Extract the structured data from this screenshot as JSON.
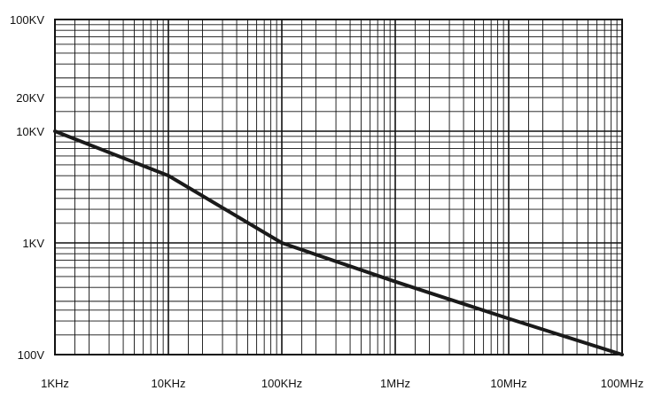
{
  "chart_data": {
    "type": "line",
    "title": "",
    "xlabel": "",
    "ylabel": "",
    "x_scale": "log",
    "y_scale": "log",
    "xlim": [
      1000,
      100000000
    ],
    "ylim": [
      100,
      100000
    ],
    "grid": true,
    "legend": "none",
    "colors": {
      "line": "#1a1a1a",
      "grid": "#111111",
      "text": "#111111",
      "background": "#ffffff"
    },
    "x_ticks": [
      {
        "value": 1000,
        "label": "1KHz"
      },
      {
        "value": 10000,
        "label": "10KHz"
      },
      {
        "value": 100000,
        "label": "100KHz"
      },
      {
        "value": 1000000,
        "label": "1MHz"
      },
      {
        "value": 10000000,
        "label": "10MHz"
      },
      {
        "value": 100000000,
        "label": "100MHz"
      }
    ],
    "y_ticks": [
      {
        "value": 100000,
        "label": "100KV"
      },
      {
        "value": 20000,
        "label": "20KV"
      },
      {
        "value": 10000,
        "label": "10KV"
      },
      {
        "value": 1000,
        "label": "1KV"
      },
      {
        "value": 100,
        "label": "100V"
      }
    ],
    "series": [
      {
        "x": [
          1000,
          10000,
          100000,
          1000000,
          10000000,
          100000000
        ],
        "y": [
          10000,
          4000,
          1000,
          450,
          210,
          100
        ]
      }
    ]
  }
}
